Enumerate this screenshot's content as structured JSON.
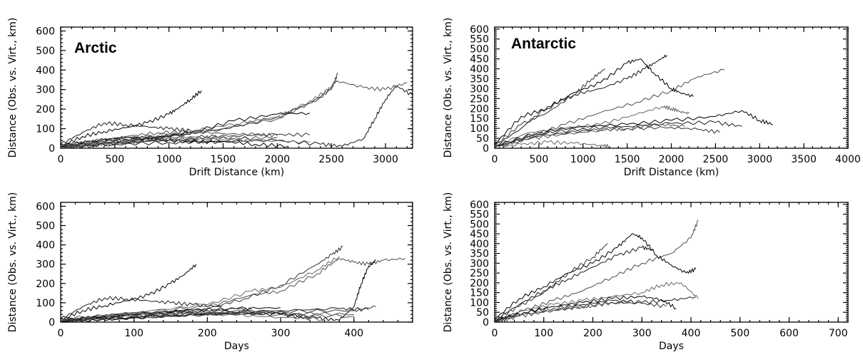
{
  "chart_data": [
    {
      "type": "line",
      "title": "Arctic",
      "xlabel": "Drift Distance (km)",
      "ylabel": "Distance (Obs. vs. Virt., km)",
      "xlim": [
        0,
        3250
      ],
      "ylim": [
        0,
        620
      ],
      "xticks": [
        0,
        500,
        1000,
        1500,
        2000,
        2500,
        3000
      ],
      "yticks": [
        0,
        100,
        200,
        300,
        400,
        500,
        600
      ],
      "grid": false,
      "series_count": 24,
      "series": [
        {
          "x": [
            0,
            200,
            400,
            600,
            800,
            1000,
            1100,
            1200,
            1300
          ],
          "y": [
            10,
            60,
            85,
            105,
            130,
            175,
            210,
            250,
            295
          ]
        },
        {
          "x": [
            0,
            200,
            400,
            600,
            800,
            1000,
            1200
          ],
          "y": [
            20,
            80,
            130,
            120,
            110,
            100,
            90
          ]
        },
        {
          "x": [
            0,
            500,
            1000,
            1500,
            2000,
            2300,
            2500,
            2560
          ],
          "y": [
            10,
            40,
            60,
            100,
            160,
            230,
            300,
            385
          ]
        },
        {
          "x": [
            0,
            500,
            1000,
            1500,
            2000,
            2400,
            2550,
            2800,
            3000,
            3200
          ],
          "y": [
            10,
            40,
            60,
            100,
            150,
            260,
            345,
            310,
            300,
            335
          ]
        },
        {
          "x": [
            0,
            500,
            1000,
            1500,
            2000,
            2300,
            2500,
            2540
          ],
          "y": [
            15,
            50,
            70,
            110,
            160,
            240,
            310,
            350
          ]
        },
        {
          "x": [
            0,
            400,
            800,
            1200,
            1600,
            2000,
            2300
          ],
          "y": [
            10,
            30,
            50,
            80,
            140,
            175,
            180
          ]
        },
        {
          "x": [
            0,
            500,
            1000,
            1500,
            2000,
            2400,
            2600,
            2800,
            2900,
            3000,
            3100,
            3250
          ],
          "y": [
            5,
            20,
            30,
            35,
            40,
            20,
            10,
            50,
            150,
            250,
            320,
            270
          ]
        },
        {
          "x": [
            0,
            400,
            800,
            1200,
            1600,
            2000,
            2300
          ],
          "y": [
            5,
            25,
            40,
            55,
            65,
            70,
            68
          ]
        },
        {
          "x": [
            0,
            400,
            800,
            1200,
            1600,
            2000
          ],
          "y": [
            5,
            20,
            35,
            45,
            50,
            55
          ]
        },
        {
          "x": [
            0,
            300,
            600,
            900,
            1200,
            1500,
            1800
          ],
          "y": [
            5,
            25,
            35,
            50,
            60,
            45,
            40
          ]
        },
        {
          "x": [
            0,
            300,
            600,
            900,
            1200,
            1500,
            1800,
            2100
          ],
          "y": [
            10,
            40,
            55,
            45,
            30,
            35,
            20,
            10
          ]
        },
        {
          "x": [
            0,
            300,
            600,
            900,
            1200,
            1500
          ],
          "y": [
            0,
            15,
            30,
            40,
            35,
            30
          ]
        },
        {
          "x": [
            0,
            300,
            600,
            900,
            1200
          ],
          "y": [
            5,
            30,
            45,
            60,
            70
          ]
        },
        {
          "x": [
            0,
            300,
            600,
            900,
            1200,
            1500,
            1800,
            2000
          ],
          "y": [
            10,
            35,
            60,
            80,
            85,
            75,
            70,
            65
          ]
        },
        {
          "x": [
            0,
            300,
            600,
            900,
            1200,
            1500,
            1900,
            2300
          ],
          "y": [
            0,
            20,
            30,
            40,
            50,
            60,
            40,
            30
          ]
        }
      ]
    },
    {
      "type": "line",
      "title": "Antarctic",
      "xlabel": "Drift Distance (km)",
      "ylabel": "Distance (Obs. vs. Virt., km)",
      "xlim": [
        0,
        4000
      ],
      "ylim": [
        0,
        610
      ],
      "xticks": [
        0,
        500,
        1000,
        1500,
        2000,
        2500,
        3000,
        3500,
        4000
      ],
      "yticks": [
        0,
        50,
        100,
        150,
        200,
        250,
        300,
        350,
        400,
        450,
        500,
        550,
        600
      ],
      "grid": false,
      "series_count": 14,
      "series": [
        {
          "x": [
            0,
            300,
            600,
            900,
            1200,
            1500,
            1650,
            1800,
            2000,
            2100,
            2250
          ],
          "y": [
            20,
            160,
            200,
            280,
            330,
            430,
            450,
            380,
            300,
            280,
            260
          ]
        },
        {
          "x": [
            0,
            300,
            600,
            900,
            1200,
            1500,
            1700,
            1850,
            1950
          ],
          "y": [
            10,
            100,
            210,
            270,
            300,
            350,
            400,
            440,
            470
          ]
        },
        {
          "x": [
            0,
            300,
            600,
            900,
            1100,
            1250
          ],
          "y": [
            15,
            120,
            180,
            270,
            350,
            400
          ]
        },
        {
          "x": [
            0,
            400,
            800,
            1200,
            1600,
            2000,
            2300,
            2600
          ],
          "y": [
            10,
            60,
            120,
            180,
            230,
            290,
            360,
            395
          ]
        },
        {
          "x": [
            0,
            400,
            800,
            1200,
            1600,
            1900,
            2000,
            2100,
            2200
          ],
          "y": [
            15,
            80,
            100,
            120,
            170,
            210,
            200,
            185,
            175
          ]
        },
        {
          "x": [
            0,
            500,
            1000,
            1500,
            2000,
            2500,
            2800,
            3000,
            3150
          ],
          "y": [
            10,
            80,
            110,
            120,
            140,
            160,
            190,
            140,
            120
          ]
        },
        {
          "x": [
            0,
            500,
            1000,
            1500,
            2000,
            2500,
            2800
          ],
          "y": [
            5,
            70,
            100,
            110,
            125,
            130,
            110
          ]
        },
        {
          "x": [
            0,
            500,
            1000,
            1500,
            2000,
            2300,
            2550
          ],
          "y": [
            5,
            60,
            90,
            100,
            105,
            95,
            80
          ]
        },
        {
          "x": [
            0,
            400,
            800,
            1200,
            1500,
            1900,
            2150
          ],
          "y": [
            10,
            50,
            70,
            90,
            100,
            120,
            110
          ]
        },
        {
          "x": [
            0,
            300,
            600,
            900,
            1200,
            1300
          ],
          "y": [
            5,
            20,
            30,
            25,
            15,
            10
          ]
        }
      ]
    },
    {
      "type": "line",
      "title": "",
      "xlabel": "Days",
      "ylabel": "Distance (Obs. vs. Virt., km)",
      "xlim": [
        0,
        480
      ],
      "ylim": [
        0,
        620
      ],
      "xticks": [
        0,
        100,
        200,
        300,
        400
      ],
      "yticks": [
        0,
        100,
        200,
        300,
        400,
        500,
        600
      ],
      "grid": false,
      "series_count": 24,
      "series": [
        {
          "x": [
            0,
            30,
            60,
            90,
            120,
            150,
            170,
            185
          ],
          "y": [
            10,
            60,
            85,
            110,
            140,
            200,
            250,
            300
          ]
        },
        {
          "x": [
            0,
            30,
            60,
            90,
            120,
            150,
            180,
            220
          ],
          "y": [
            15,
            80,
            125,
            120,
            110,
            100,
            90,
            80
          ]
        },
        {
          "x": [
            0,
            100,
            200,
            250,
            300,
            350,
            370,
            385
          ],
          "y": [
            10,
            40,
            70,
            120,
            190,
            300,
            350,
            390
          ]
        },
        {
          "x": [
            0,
            100,
            200,
            260,
            300,
            350,
            380,
            400,
            420,
            440,
            470
          ],
          "y": [
            10,
            45,
            80,
            140,
            160,
            250,
            330,
            310,
            300,
            320,
            330
          ]
        },
        {
          "x": [
            0,
            100,
            200,
            260,
            300,
            350,
            380
          ],
          "y": [
            15,
            50,
            90,
            160,
            180,
            270,
            340
          ]
        },
        {
          "x": [
            0,
            100,
            200,
            300,
            350,
            380,
            400,
            410,
            420,
            430
          ],
          "y": [
            5,
            25,
            40,
            45,
            20,
            10,
            80,
            200,
            290,
            320
          ]
        },
        {
          "x": [
            0,
            100,
            200,
            300,
            380,
            420
          ],
          "y": [
            5,
            30,
            50,
            60,
            70,
            65
          ]
        },
        {
          "x": [
            0,
            100,
            200,
            300,
            400,
            430
          ],
          "y": [
            5,
            20,
            40,
            55,
            60,
            80
          ]
        },
        {
          "x": [
            0,
            80,
            160,
            240,
            320,
            400
          ],
          "y": [
            10,
            35,
            55,
            60,
            45,
            40
          ]
        },
        {
          "x": [
            0,
            80,
            160,
            240,
            300,
            360
          ],
          "y": [
            10,
            40,
            50,
            35,
            25,
            15
          ]
        },
        {
          "x": [
            0,
            60,
            120,
            180,
            240,
            300
          ],
          "y": [
            5,
            30,
            45,
            60,
            70,
            75
          ]
        },
        {
          "x": [
            0,
            80,
            160,
            240,
            300,
            340
          ],
          "y": [
            5,
            20,
            35,
            50,
            40,
            20
          ]
        },
        {
          "x": [
            0,
            60,
            120,
            180,
            240,
            260
          ],
          "y": [
            0,
            25,
            40,
            55,
            70,
            65
          ]
        },
        {
          "x": [
            0,
            100,
            200,
            300,
            400
          ],
          "y": [
            5,
            30,
            50,
            40,
            30
          ]
        }
      ]
    },
    {
      "type": "line",
      "title": "",
      "xlabel": "Days",
      "ylabel": "Distance (Obs. vs. Virt., km)",
      "xlim": [
        0,
        720
      ],
      "ylim": [
        0,
        610
      ],
      "xticks": [
        0,
        100,
        200,
        300,
        400,
        500,
        600,
        700
      ],
      "yticks": [
        0,
        50,
        100,
        150,
        200,
        250,
        300,
        350,
        400,
        450,
        500,
        550,
        600
      ],
      "grid": false,
      "series_count": 14,
      "series": [
        {
          "x": [
            0,
            50,
            100,
            150,
            200,
            250,
            280,
            300,
            330,
            360,
            390,
            410
          ],
          "y": [
            15,
            120,
            180,
            250,
            300,
            380,
            450,
            430,
            340,
            290,
            250,
            270
          ]
        },
        {
          "x": [
            0,
            50,
            100,
            150,
            200,
            250,
            300,
            320
          ],
          "y": [
            10,
            90,
            160,
            220,
            280,
            340,
            380,
            370
          ]
        },
        {
          "x": [
            0,
            50,
            100,
            150,
            200,
            230
          ],
          "y": [
            10,
            80,
            150,
            250,
            330,
            400
          ]
        },
        {
          "x": [
            0,
            60,
            120,
            180,
            240,
            300,
            360,
            400,
            415
          ],
          "y": [
            5,
            60,
            110,
            160,
            230,
            300,
            350,
            430,
            520
          ]
        },
        {
          "x": [
            0,
            60,
            120,
            180,
            240,
            300,
            340,
            380,
            415
          ],
          "y": [
            5,
            60,
            90,
            110,
            130,
            150,
            190,
            200,
            120
          ]
        },
        {
          "x": [
            0,
            60,
            120,
            180,
            240,
            300,
            340,
            370
          ],
          "y": [
            5,
            50,
            80,
            100,
            120,
            130,
            115,
            70
          ]
        },
        {
          "x": [
            0,
            60,
            120,
            180,
            240,
            300,
            360,
            410
          ],
          "y": [
            5,
            50,
            70,
            90,
            110,
            100,
            110,
            130
          ]
        },
        {
          "x": [
            0,
            60,
            120,
            180,
            240,
            300,
            350
          ],
          "y": [
            5,
            40,
            60,
            80,
            100,
            95,
            80
          ]
        },
        {
          "x": [
            0,
            50,
            100,
            150,
            200,
            250,
            280
          ],
          "y": [
            0,
            30,
            50,
            70,
            85,
            100,
            110
          ]
        }
      ]
    }
  ]
}
